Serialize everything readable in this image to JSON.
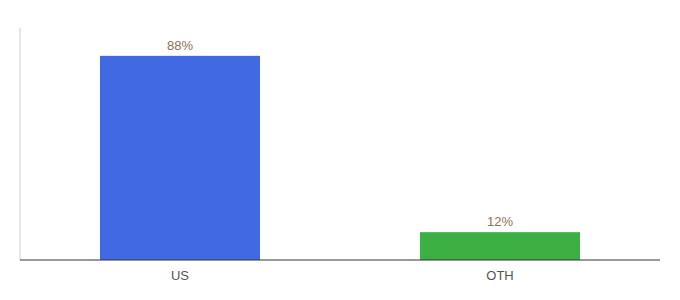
{
  "chart_data": {
    "type": "bar",
    "categories": [
      "US",
      "OTH"
    ],
    "values": [
      88,
      12
    ],
    "value_labels": [
      "88%",
      "12%"
    ],
    "colors": [
      "#4169e1",
      "#3cb043"
    ],
    "ylim": [
      0,
      100
    ],
    "data_labels": true,
    "tick_labels": "x",
    "grid": false
  }
}
